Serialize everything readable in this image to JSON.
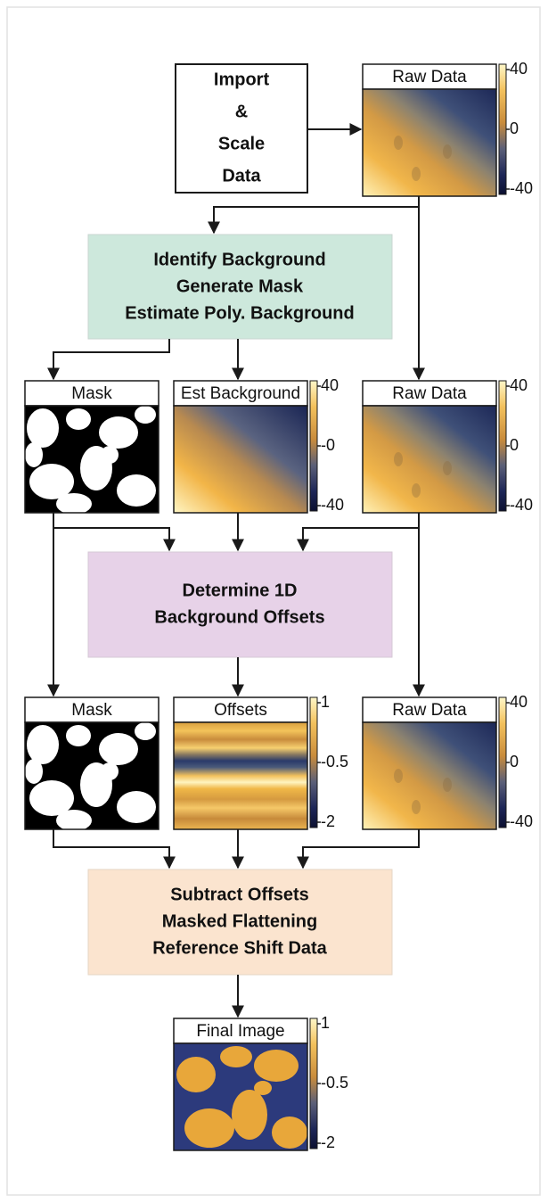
{
  "steps": [
    {
      "lines": [
        "Import",
        "&",
        "Scale",
        "Data"
      ]
    },
    {
      "lines": [
        "Identify Background",
        "Generate Mask",
        "Estimate Poly. Background"
      ]
    },
    {
      "lines": [
        "Determine 1D",
        "Background Offsets"
      ]
    },
    {
      "lines": [
        "Subtract Offsets",
        "Masked Flattening",
        "Reference Shift Data"
      ]
    }
  ],
  "panels": [
    {
      "title": "Raw Data",
      "colorbar": [
        "40",
        "0",
        "-40"
      ]
    },
    {
      "title": "Mask"
    },
    {
      "title": "Est Background",
      "colorbar": [
        "40",
        "-0",
        "-40"
      ]
    },
    {
      "title": "Raw Data",
      "colorbar": [
        "40",
        "0",
        "-40"
      ]
    },
    {
      "title": "Mask"
    },
    {
      "title": "Offsets",
      "colorbar": [
        "1",
        "-0.5",
        "-2"
      ]
    },
    {
      "title": "Raw Data",
      "colorbar": [
        "40",
        "0",
        "-40"
      ]
    },
    {
      "title": "Final Image",
      "colorbar": [
        "1",
        "-0.5",
        "-2"
      ]
    }
  ]
}
